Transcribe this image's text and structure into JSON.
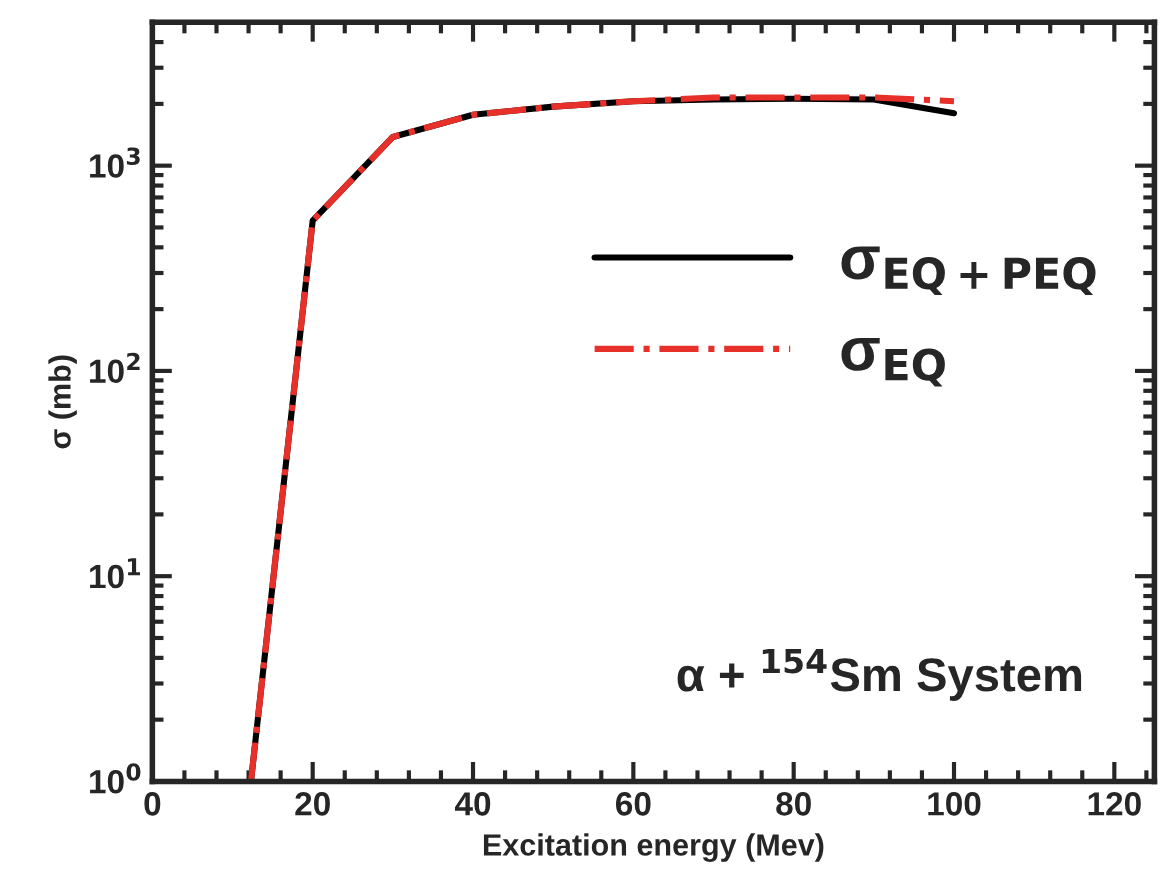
{
  "chart_data": {
    "type": "line",
    "xlabel": "Excitation energy (Mev)",
    "ylabel": "σ (mb)",
    "x": [
      12.3,
      20,
      30,
      40,
      50,
      60,
      70,
      80,
      90,
      100
    ],
    "series": [
      {
        "name": "σ$_{EQ+PEQ}$",
        "color": "#000000",
        "line_style": "solid",
        "values": [
          1,
          540,
          1380,
          1770,
          1940,
          2060,
          2100,
          2120,
          2100,
          1800
        ]
      },
      {
        "name": "σ$_{EQ}$",
        "color": "#e8302a",
        "line_style": "dashdot",
        "values": [
          1,
          540,
          1380,
          1770,
          1940,
          2060,
          2150,
          2150,
          2150,
          2060
        ]
      }
    ],
    "log": "y",
    "xlim": [
      0,
      125
    ],
    "xticks": [
      0,
      20,
      40,
      60,
      80,
      100,
      120
    ],
    "ylim": [
      1,
      5000
    ],
    "yticks": [
      {
        "value": 1,
        "label": "10$^{0}$"
      },
      {
        "value": 10,
        "label": "10$^{1}$"
      },
      {
        "value": 100,
        "label": "10$^{2}$"
      },
      {
        "value": 1000,
        "label": "10$^{3}$"
      }
    ],
    "grid": false,
    "legend": "center right",
    "annotations": [
      "α + $^{154}$Sm System"
    ]
  }
}
